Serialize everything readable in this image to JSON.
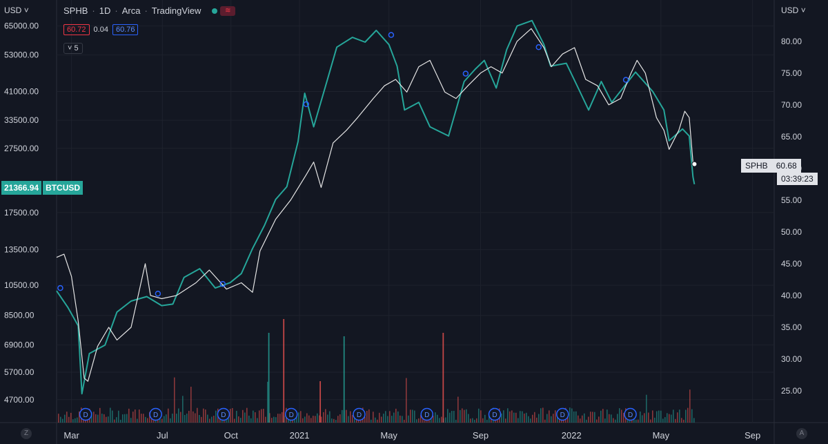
{
  "header": {
    "symbol": "SPHB",
    "interval": "1D",
    "exchange": "Arca",
    "source": "TradingView",
    "status_icon": "wave-icon"
  },
  "quote": {
    "bid": "60.72",
    "spread": "0.04",
    "ask": "60.76"
  },
  "indicator_toggle": {
    "label": "5"
  },
  "left_currency": "USD",
  "right_currency": "USD",
  "corner_left": "Z",
  "corner_right": "A",
  "overlay_tag": {
    "price": "21366.94",
    "symbol": "BTCUSD"
  },
  "last_tag": {
    "symbol": "SPHB",
    "price": "60.68",
    "timer": "03:39:23"
  },
  "colors": {
    "background": "#131722",
    "btc_line": "#26a69a",
    "sphb_line": "#e6e6e6",
    "grid": "#1e222d",
    "vol_up": "#26a69a",
    "vol_down": "#ef5350",
    "dividend": "#2962ff"
  },
  "chart_data": {
    "type": "line",
    "x_tick_labels": [
      "Mar",
      "Jul",
      "Oct",
      "2021",
      "May",
      "Sep",
      "2022",
      "May",
      "Sep"
    ],
    "x_tick_dates": [
      "2020-03-01",
      "2020-07-01",
      "2020-10-01",
      "2021-01-01",
      "2021-05-01",
      "2021-09-01",
      "2022-01-01",
      "2022-05-01",
      "2022-09-01"
    ],
    "left_axis": {
      "scale": "log",
      "ticks": [
        65000,
        53000,
        41000,
        33500,
        27500,
        17500,
        13500,
        10500,
        8500,
        6900,
        5700,
        4700
      ],
      "tick_labels": [
        "65000.00",
        "53000.00",
        "41000.00",
        "33500.00",
        "27500.00",
        "17500.00",
        "13500.00",
        "10500.00",
        "8500.00",
        "6900.00",
        "5700.00",
        "4700.00"
      ]
    },
    "right_axis": {
      "scale": "linear",
      "ticks": [
        80,
        75,
        70,
        65,
        60,
        55,
        50,
        45,
        40,
        35,
        30,
        25
      ],
      "tick_labels": [
        "80.00",
        "75.00",
        "70.00",
        "65.00",
        "60.00",
        "55.00",
        "50.00",
        "45.00",
        "40.00",
        "35.00",
        "30.00",
        "25.00"
      ]
    },
    "series": [
      {
        "name": "BTCUSD",
        "axis": "left",
        "points": [
          [
            "2020-02-10",
            10100
          ],
          [
            "2020-02-25",
            9000
          ],
          [
            "2020-03-10",
            7900
          ],
          [
            "2020-03-15",
            4900
          ],
          [
            "2020-03-25",
            6500
          ],
          [
            "2020-04-15",
            6900
          ],
          [
            "2020-05-01",
            8700
          ],
          [
            "2020-05-20",
            9400
          ],
          [
            "2020-06-10",
            9700
          ],
          [
            "2020-06-30",
            9100
          ],
          [
            "2020-07-15",
            9200
          ],
          [
            "2020-07-30",
            11100
          ],
          [
            "2020-08-20",
            11800
          ],
          [
            "2020-09-10",
            10300
          ],
          [
            "2020-09-30",
            10700
          ],
          [
            "2020-10-15",
            11400
          ],
          [
            "2020-10-30",
            13600
          ],
          [
            "2020-11-15",
            16000
          ],
          [
            "2020-11-30",
            19200
          ],
          [
            "2020-12-15",
            21000
          ],
          [
            "2020-12-30",
            28800
          ],
          [
            "2021-01-08",
            40500
          ],
          [
            "2021-01-20",
            32000
          ],
          [
            "2021-02-08",
            45000
          ],
          [
            "2021-02-20",
            56000
          ],
          [
            "2021-03-13",
            60000
          ],
          [
            "2021-03-30",
            58000
          ],
          [
            "2021-04-14",
            63000
          ],
          [
            "2021-05-01",
            57000
          ],
          [
            "2021-05-12",
            49000
          ],
          [
            "2021-05-22",
            36000
          ],
          [
            "2021-06-10",
            38000
          ],
          [
            "2021-06-25",
            32000
          ],
          [
            "2021-07-20",
            30000
          ],
          [
            "2021-08-10",
            44000
          ],
          [
            "2021-08-25",
            48000
          ],
          [
            "2021-09-06",
            51000
          ],
          [
            "2021-09-22",
            42000
          ],
          [
            "2021-10-06",
            55000
          ],
          [
            "2021-10-20",
            65000
          ],
          [
            "2021-11-09",
            67500
          ],
          [
            "2021-11-25",
            57000
          ],
          [
            "2021-12-04",
            49000
          ],
          [
            "2021-12-25",
            50000
          ],
          [
            "2022-01-10",
            42000
          ],
          [
            "2022-01-24",
            36000
          ],
          [
            "2022-02-10",
            44000
          ],
          [
            "2022-02-24",
            38000
          ],
          [
            "2022-03-28",
            47000
          ],
          [
            "2022-04-20",
            41000
          ],
          [
            "2022-05-05",
            36000
          ],
          [
            "2022-05-12",
            29000
          ],
          [
            "2022-05-30",
            31500
          ],
          [
            "2022-06-08",
            30000
          ],
          [
            "2022-06-13",
            22500
          ],
          [
            "2022-06-15",
            21366.94
          ]
        ]
      },
      {
        "name": "SPHB",
        "axis": "right",
        "points": [
          [
            "2020-02-10",
            46
          ],
          [
            "2020-02-20",
            46.5
          ],
          [
            "2020-03-01",
            43
          ],
          [
            "2020-03-10",
            36
          ],
          [
            "2020-03-18",
            27
          ],
          [
            "2020-03-23",
            26.5
          ],
          [
            "2020-04-05",
            32
          ],
          [
            "2020-04-20",
            35
          ],
          [
            "2020-05-01",
            33
          ],
          [
            "2020-05-20",
            35
          ],
          [
            "2020-06-08",
            45
          ],
          [
            "2020-06-15",
            40
          ],
          [
            "2020-06-30",
            39.5
          ],
          [
            "2020-07-20",
            40
          ],
          [
            "2020-08-15",
            42
          ],
          [
            "2020-09-02",
            44
          ],
          [
            "2020-09-25",
            41
          ],
          [
            "2020-10-15",
            42
          ],
          [
            "2020-10-30",
            40.5
          ],
          [
            "2020-11-09",
            47
          ],
          [
            "2020-11-30",
            52
          ],
          [
            "2020-12-20",
            55
          ],
          [
            "2021-01-10",
            59
          ],
          [
            "2021-01-20",
            61
          ],
          [
            "2021-01-30",
            57
          ],
          [
            "2021-02-15",
            64
          ],
          [
            "2021-03-05",
            66
          ],
          [
            "2021-03-20",
            68
          ],
          [
            "2021-04-10",
            71
          ],
          [
            "2021-04-25",
            73
          ],
          [
            "2021-05-10",
            74
          ],
          [
            "2021-05-25",
            72
          ],
          [
            "2021-06-10",
            76
          ],
          [
            "2021-06-25",
            77
          ],
          [
            "2021-07-15",
            72
          ],
          [
            "2021-07-30",
            71
          ],
          [
            "2021-08-15",
            73
          ],
          [
            "2021-09-01",
            75
          ],
          [
            "2021-09-15",
            76
          ],
          [
            "2021-09-30",
            75
          ],
          [
            "2021-10-20",
            80
          ],
          [
            "2021-11-08",
            82
          ],
          [
            "2021-11-25",
            79
          ],
          [
            "2021-12-05",
            76
          ],
          [
            "2021-12-20",
            78
          ],
          [
            "2022-01-05",
            79
          ],
          [
            "2022-01-20",
            74
          ],
          [
            "2022-02-05",
            73
          ],
          [
            "2022-02-20",
            70
          ],
          [
            "2022-03-08",
            71
          ],
          [
            "2022-03-22",
            75
          ],
          [
            "2022-03-30",
            77
          ],
          [
            "2022-04-10",
            75
          ],
          [
            "2022-04-25",
            68
          ],
          [
            "2022-05-05",
            66
          ],
          [
            "2022-05-12",
            63
          ],
          [
            "2022-05-25",
            66
          ],
          [
            "2022-06-02",
            69
          ],
          [
            "2022-06-08",
            68
          ],
          [
            "2022-06-13",
            61
          ],
          [
            "2022-06-15",
            60.68
          ]
        ]
      }
    ],
    "dividend_marker_label": "D",
    "dividend_dates": [
      "2020-03-20",
      "2020-06-22",
      "2020-09-21",
      "2020-12-21",
      "2021-03-22",
      "2021-06-21",
      "2021-09-20",
      "2021-12-20",
      "2022-03-21"
    ],
    "event_dots": [
      {
        "date": "2020-02-15",
        "axis": "left",
        "value": 10300
      },
      {
        "date": "2020-06-25",
        "axis": "left",
        "value": 9900
      },
      {
        "date": "2020-09-20",
        "axis": "left",
        "value": 10600
      },
      {
        "date": "2021-01-10",
        "axis": "left",
        "value": 37500
      },
      {
        "date": "2021-05-04",
        "axis": "left",
        "value": 61000
      },
      {
        "date": "2021-08-12",
        "axis": "left",
        "value": 46500
      },
      {
        "date": "2021-11-18",
        "axis": "left",
        "value": 56000
      },
      {
        "date": "2022-03-15",
        "axis": "left",
        "value": 44500
      }
    ],
    "volume_note": "volume histogram shown as bars along the bottom (relative)"
  }
}
